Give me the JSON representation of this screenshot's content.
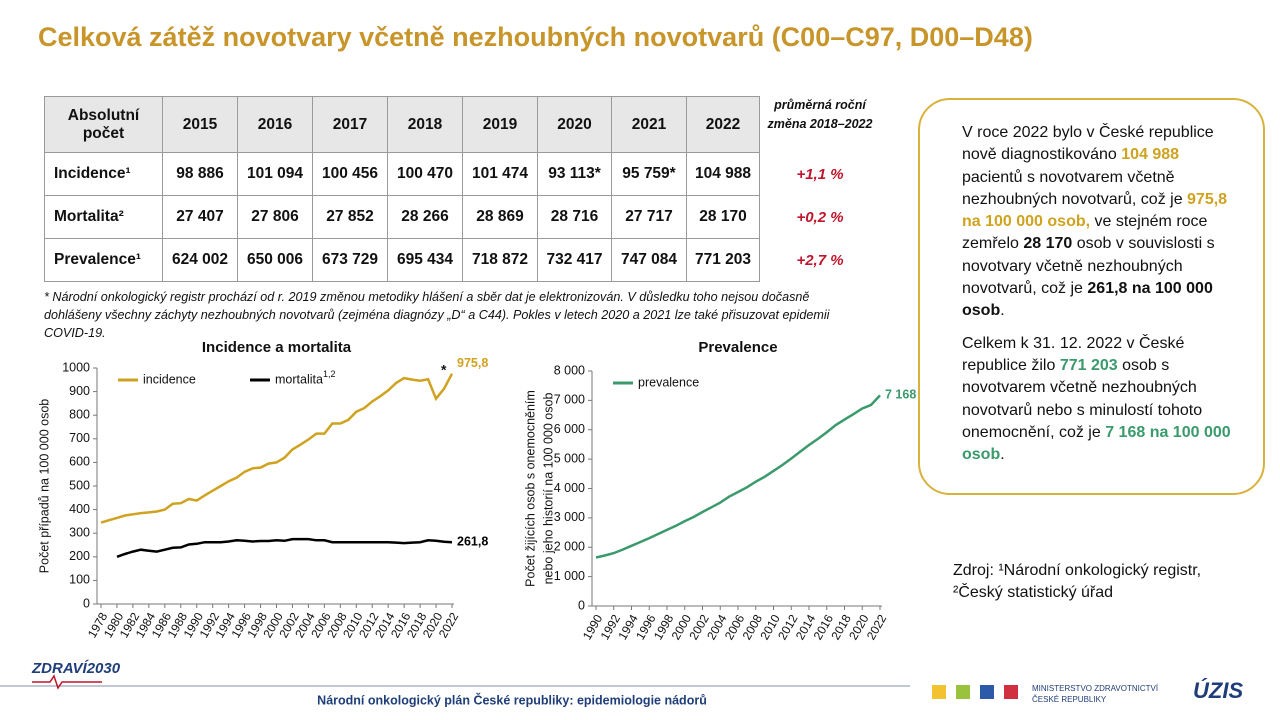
{
  "title": "Celková zátěž novotvary včetně nezhoubných novotvarů (C00–C97, D00–D48)",
  "table": {
    "header": [
      "Absolutní počet",
      "2015",
      "2016",
      "2017",
      "2018",
      "2019",
      "2020",
      "2021",
      "2022"
    ],
    "change_header": "průměrná roční změna 2018–2022",
    "rows": [
      {
        "label": "Incidence¹",
        "cells": [
          "98 886",
          "101 094",
          "100 456",
          "100 470",
          "101 474",
          "93 113*",
          "95 759*",
          "104 988"
        ],
        "change": "+1,1 %"
      },
      {
        "label": "Mortalita²",
        "cells": [
          "27 407",
          "27 806",
          "27 852",
          "28 266",
          "28 869",
          "28 716",
          "27 717",
          "28 170"
        ],
        "change": "+0,2 %"
      },
      {
        "label": "Prevalence¹",
        "cells": [
          "624 002",
          "650 006",
          "673 729",
          "695 434",
          "718 872",
          "732 417",
          "747 084",
          "771 203"
        ],
        "change": "+2,7 %"
      }
    ]
  },
  "footnote": "* Národní onkologický registr prochází od r. 2019 změnou metodiky hlášení a sběr dat je elektronizován. V důsledku toho nejsou dočasně dohlášeny všechny záchyty nezhoubných novotvarů (zejména diagnózy „D“ a C44). Pokles v letech 2020 a 2021 lze také přisuzovat epidemii COVID-19.",
  "box": {
    "paragraphs": [
      [
        {
          "t": "V roce 2022 bylo v České republice nově diagnostikováno ",
          "s": "normal"
        },
        {
          "t": "104 988",
          "s": "gold"
        },
        {
          "t": " pacientů s novotvarem včetně nezhoubných novotvarů, což je ",
          "s": "normal"
        },
        {
          "t": "975,8 na 100 000 osob,",
          "s": "gold"
        },
        {
          "t": " ve stejném roce zemřelo ",
          "s": "normal"
        },
        {
          "t": "28 170",
          "s": "bold"
        },
        {
          "t": " osob v souvislosti s novotvary včetně nezhoubných novotvarů, což je ",
          "s": "normal"
        },
        {
          "t": "261,8 na 100 000 osob",
          "s": "bold"
        },
        {
          "t": ".",
          "s": "normal"
        }
      ],
      [
        {
          "t": "Celkem k 31. 12. 2022 v České republice žilo ",
          "s": "normal"
        },
        {
          "t": "771 203",
          "s": "green"
        },
        {
          "t": " osob s novotvarem včetně nezhoubných novotvarů nebo s minulostí tohoto onemocnění, což je ",
          "s": "normal"
        },
        {
          "t": "7 168 na 100 000 osob",
          "s": "green"
        },
        {
          "t": ".",
          "s": "normal"
        }
      ]
    ]
  },
  "source": [
    "Zdroj: ¹Národní onkologický registr,",
    "²Český statistický úřad"
  ],
  "footer": {
    "text": "Národní onkologický plán České republiky: epidemiologie nádorů",
    "logo_left": "ZDRAVÍ2030",
    "ministry": [
      "MINISTERSTVO ZDRAVOTNICTVÍ",
      "ČESKÉ REPUBLIKY"
    ],
    "logo_right": "ÚZIS"
  },
  "chart_data": [
    {
      "type": "line",
      "title": "Incidence a mortalita",
      "y_label": [
        "Počet případů na 100 000 osob"
      ],
      "x": [
        1978,
        1979,
        1980,
        1981,
        1982,
        1983,
        1984,
        1985,
        1986,
        1987,
        1988,
        1989,
        1990,
        1991,
        1992,
        1993,
        1994,
        1995,
        1996,
        1997,
        1998,
        1999,
        2000,
        2001,
        2002,
        2003,
        2004,
        2005,
        2006,
        2007,
        2008,
        2009,
        2010,
        2011,
        2012,
        2013,
        2014,
        2015,
        2016,
        2017,
        2018,
        2019,
        2020,
        2021,
        2022
      ],
      "xlim": [
        1978,
        2022
      ],
      "xticks": [
        1978,
        1980,
        1982,
        1984,
        1986,
        1988,
        1990,
        1992,
        1994,
        1996,
        1998,
        2000,
        2002,
        2004,
        2006,
        2008,
        2010,
        2012,
        2014,
        2016,
        2018,
        2020,
        2022
      ],
      "ylim": [
        0,
        1000
      ],
      "yticks": [
        0,
        100,
        200,
        300,
        400,
        500,
        600,
        700,
        800,
        900,
        1000
      ],
      "legend": "top-left",
      "annotation": "*",
      "series": [
        {
          "name": "incidence",
          "color": "#cfa21f",
          "values": [
            345,
            355,
            365,
            375,
            380,
            385,
            388,
            392,
            400,
            425,
            427,
            445,
            438,
            460,
            480,
            500,
            520,
            535,
            560,
            575,
            578,
            595,
            600,
            620,
            655,
            675,
            697,
            722,
            722,
            765,
            765,
            780,
            815,
            830,
            858,
            880,
            905,
            937,
            957,
            951,
            946,
            952,
            870,
            912,
            975.8
          ],
          "value_labels": [
            null,
            null,
            null,
            null,
            null,
            null,
            null,
            null,
            null,
            null,
            null,
            null,
            null,
            null,
            null,
            null,
            null,
            null,
            null,
            null,
            null,
            null,
            null,
            null,
            null,
            null,
            null,
            null,
            null,
            null,
            null,
            null,
            null,
            null,
            null,
            null,
            null,
            null,
            null,
            null,
            null,
            null,
            null,
            null,
            "975,8"
          ]
        },
        {
          "name": "mortalita",
          "sup": "1,2",
          "color": "#000000",
          "values": [
            null,
            null,
            200,
            212,
            222,
            230,
            226,
            222,
            230,
            238,
            240,
            252,
            255,
            262,
            262,
            262,
            265,
            270,
            268,
            265,
            267,
            267,
            270,
            268,
            275,
            275,
            275,
            270,
            270,
            262,
            262,
            262,
            262,
            262,
            262,
            262,
            262,
            260,
            258,
            260,
            262,
            270,
            268,
            264,
            261.8
          ],
          "value_labels": [
            null,
            null,
            null,
            null,
            null,
            null,
            null,
            null,
            null,
            null,
            null,
            null,
            null,
            null,
            null,
            null,
            null,
            null,
            null,
            null,
            null,
            null,
            null,
            null,
            null,
            null,
            null,
            null,
            null,
            null,
            null,
            null,
            null,
            null,
            null,
            null,
            null,
            null,
            null,
            null,
            null,
            null,
            null,
            null,
            "261,8"
          ]
        }
      ]
    },
    {
      "type": "line",
      "title": "Prevalence",
      "y_label": [
        "Počet žijících osob s onemocněním",
        "nebo jeho historií na 100 000 osob"
      ],
      "x": [
        1990,
        1991,
        1992,
        1993,
        1994,
        1995,
        1996,
        1997,
        1998,
        1999,
        2000,
        2001,
        2002,
        2003,
        2004,
        2005,
        2006,
        2007,
        2008,
        2009,
        2010,
        2011,
        2012,
        2013,
        2014,
        2015,
        2016,
        2017,
        2018,
        2019,
        2020,
        2021,
        2022
      ],
      "xlim": [
        1990,
        2022
      ],
      "xticks": [
        1990,
        1992,
        1994,
        1996,
        1998,
        2000,
        2002,
        2004,
        2006,
        2008,
        2010,
        2012,
        2014,
        2016,
        2018,
        2020,
        2022
      ],
      "ylim": [
        0,
        8000
      ],
      "yticks": [
        0,
        {
          "value": 1000,
          "label": "1 000"
        },
        {
          "value": 2000,
          "label": "2 000"
        },
        {
          "value": 3000,
          "label": "3 000"
        },
        {
          "value": 4000,
          "label": "4 000"
        },
        {
          "value": 5000,
          "label": "5 000"
        },
        {
          "value": 6000,
          "label": "6 000"
        },
        {
          "value": 7000,
          "label": "7 000"
        },
        {
          "value": 8000,
          "label": "8 000"
        }
      ],
      "legend": "top-left",
      "series": [
        {
          "name": "prevalence",
          "color": "#3a9a6c",
          "values": [
            1650,
            1720,
            1800,
            1920,
            2050,
            2180,
            2310,
            2450,
            2590,
            2730,
            2890,
            3030,
            3200,
            3360,
            3520,
            3720,
            3880,
            4040,
            4230,
            4400,
            4600,
            4800,
            5020,
            5250,
            5480,
            5690,
            5915,
            6154,
            6345,
            6530,
            6725,
            6845,
            7168
          ],
          "value_labels": [
            null,
            null,
            null,
            null,
            null,
            null,
            null,
            null,
            null,
            null,
            null,
            null,
            null,
            null,
            null,
            null,
            null,
            null,
            null,
            null,
            null,
            null,
            null,
            null,
            null,
            null,
            null,
            null,
            null,
            null,
            null,
            null,
            "7 168"
          ]
        }
      ]
    }
  ]
}
